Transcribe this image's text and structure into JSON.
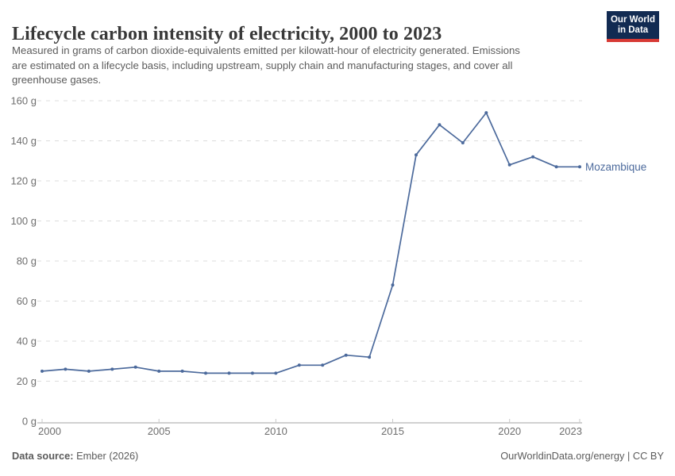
{
  "header": {
    "title": "Lifecycle carbon intensity of electricity, 2000 to 2023",
    "subtitle_lines": [
      "Measured in grams of carbon dioxide-equivalents emitted per kilowatt-hour of electricity generated. Emissions",
      "are estimated on a lifecycle basis, including upstream, supply chain and manufacturing stages, and cover all",
      "greenhouse gases."
    ],
    "logo": {
      "line1": "Our World",
      "line2": "in Data",
      "bg_color": "#122b52",
      "accent_color": "#d73a35"
    }
  },
  "chart_data": {
    "type": "line",
    "title": "Lifecycle carbon intensity of electricity, 2000 to 2023",
    "xlabel": "",
    "ylabel": "",
    "unit_suffix": " g",
    "xlim": [
      2000,
      2023
    ],
    "ylim": [
      0,
      160
    ],
    "x_ticks": [
      2000,
      2005,
      2010,
      2015,
      2020,
      2023
    ],
    "y_ticks": [
      0,
      20,
      40,
      60,
      80,
      100,
      120,
      140,
      160
    ],
    "grid": "horizontal-dashed",
    "legend_position": "end-of-line-label",
    "x": [
      2000,
      2001,
      2002,
      2003,
      2004,
      2005,
      2006,
      2007,
      2008,
      2009,
      2010,
      2011,
      2012,
      2013,
      2014,
      2015,
      2016,
      2017,
      2018,
      2019,
      2020,
      2021,
      2022,
      2023
    ],
    "series": [
      {
        "name": "Mozambique",
        "color": "#4c6a9c",
        "values": [
          25,
          26,
          25,
          26,
          27,
          25,
          25,
          24,
          24,
          24,
          24,
          28,
          28,
          33,
          32,
          68,
          133,
          148,
          139,
          154,
          128,
          132,
          127,
          127
        ]
      }
    ]
  },
  "footer": {
    "source_label": "Data source:",
    "source_value": " Ember (2026)",
    "credit": "OurWorldinData.org/energy | CC BY"
  }
}
